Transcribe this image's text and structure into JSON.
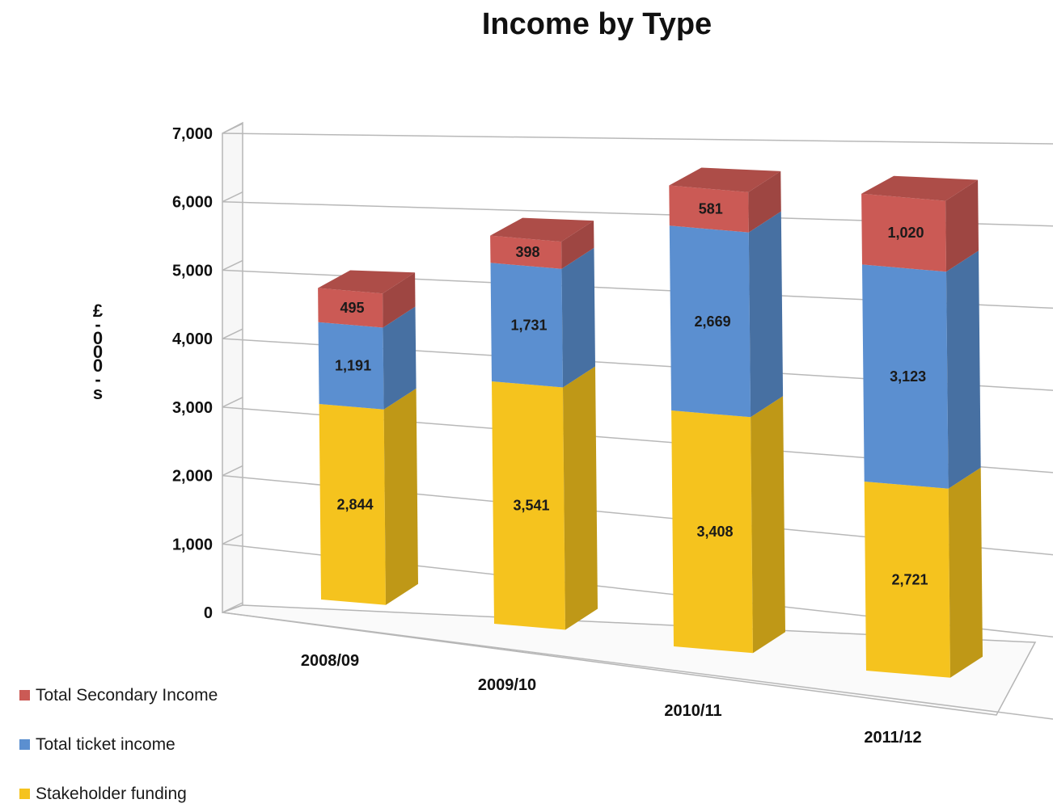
{
  "chart_data": {
    "type": "bar",
    "stacked": true,
    "three_d": true,
    "title": "Income  by Type",
    "ylabel": "£-000-s",
    "xlabel": "",
    "ylim": [
      0,
      7000
    ],
    "yticks": [
      "0",
      "1,000",
      "2,000",
      "3,000",
      "4,000",
      "5,000",
      "6,000",
      "7,000"
    ],
    "categories": [
      "2008/09",
      "2009/10",
      "2010/11",
      "2011/12"
    ],
    "series": [
      {
        "name": "Stakeholder funding",
        "values": [
          2844,
          3541,
          3408,
          2721
        ],
        "labels": [
          "2,844",
          "3,541",
          "3,408",
          "2,721"
        ],
        "color": "#F5C31E"
      },
      {
        "name": "Total ticket income",
        "values": [
          1191,
          1731,
          2669,
          3123
        ],
        "labels": [
          "1,191",
          "1,731",
          "2,669",
          "3,123"
        ],
        "color": "#5B8FD0"
      },
      {
        "name": "Total Secondary Income",
        "values": [
          495,
          398,
          581,
          1020
        ],
        "labels": [
          "495",
          "398",
          "581",
          "1,020"
        ],
        "color": "#CB5A55"
      }
    ],
    "legend_order": [
      "Total Secondary Income",
      "Total ticket income",
      "Stakeholder funding"
    ],
    "legend_position": "bottom-left",
    "grid": true
  }
}
